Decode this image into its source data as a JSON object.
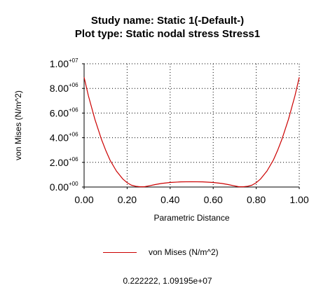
{
  "titles": {
    "line1": "Study name: Static 1(-Default-)",
    "line2": "Plot type: Static nodal stress Stress1"
  },
  "chart_data": {
    "type": "line",
    "title": "Study name: Static 1(-Default-)",
    "subtitle": "Plot type: Static nodal stress Stress1",
    "xlabel": "Parametric Distance",
    "ylabel": "von Mises (N/m^2)",
    "xlim": [
      0,
      1
    ],
    "ylim": [
      0,
      10000000
    ],
    "grid": true,
    "grid_style": "dotted",
    "x_ticks": [
      "0.00",
      "0.20",
      "0.40",
      "0.60",
      "0.80",
      "1.00"
    ],
    "y_ticks": [
      {
        "main": "0.00",
        "exp": "+00"
      },
      {
        "main": "2.00",
        "exp": "+06"
      },
      {
        "main": "4.00",
        "exp": "+06"
      },
      {
        "main": "6.00",
        "exp": "+06"
      },
      {
        "main": "8.00",
        "exp": "+06"
      },
      {
        "main": "1.00",
        "exp": "+07"
      }
    ],
    "legend_position": "bottom-center",
    "series": [
      {
        "name": "von Mises (N/m^2)",
        "color": "#cc0000",
        "x": [
          0.0,
          0.02,
          0.05,
          0.08,
          0.1,
          0.12,
          0.15,
          0.18,
          0.2,
          0.22,
          0.24,
          0.26,
          0.28,
          0.3,
          0.33,
          0.36,
          0.4,
          0.45,
          0.5,
          0.55,
          0.6,
          0.64,
          0.67,
          0.7,
          0.72,
          0.74,
          0.76,
          0.78,
          0.8,
          0.82,
          0.85,
          0.88,
          0.9,
          0.92,
          0.95,
          0.98,
          1.0
        ],
        "y": [
          8900000,
          7400000,
          5500000,
          3900000,
          3000000,
          2200000,
          1300000,
          650000,
          350000,
          150000,
          60000,
          20000,
          20000,
          90000,
          200000,
          290000,
          370000,
          420000,
          430000,
          420000,
          370000,
          290000,
          200000,
          90000,
          20000,
          20000,
          60000,
          150000,
          350000,
          650000,
          1300000,
          2200000,
          3000000,
          3900000,
          5500000,
          7400000,
          8900000
        ]
      }
    ]
  },
  "legend": {
    "label": "von Mises (N/m^2)",
    "color": "#cc0000"
  },
  "readout": {
    "text": "0.222222, 1.09195e+07"
  }
}
